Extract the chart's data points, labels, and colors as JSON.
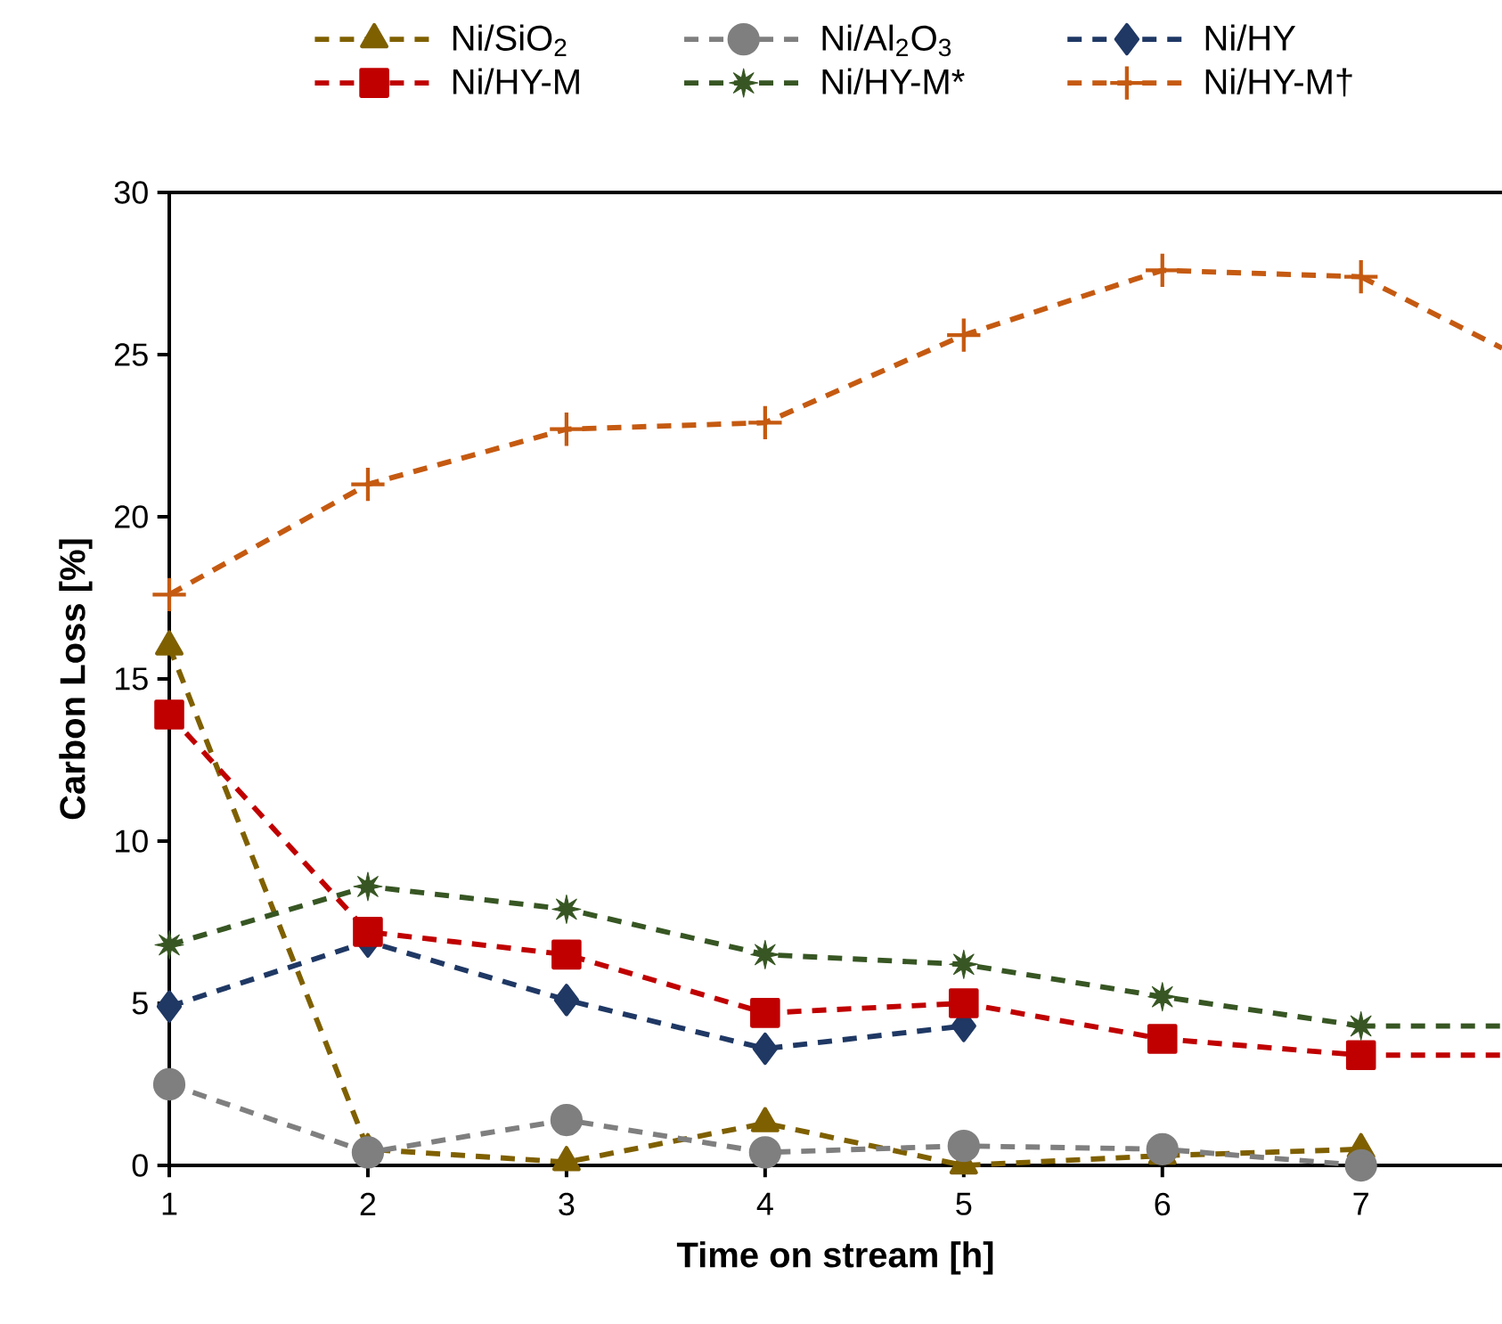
{
  "chart_data": {
    "type": "line",
    "xlabel": "Time on stream [h]",
    "ylabel": "Carbon Loss [%]",
    "xlim": [
      1,
      7.71
    ],
    "ylim": [
      0,
      30
    ],
    "xticks": [
      1,
      2,
      3,
      4,
      5,
      6,
      7
    ],
    "yticks": [
      0,
      5,
      10,
      15,
      20,
      25,
      30
    ],
    "legend": "top",
    "line_style": "dashed",
    "series": [
      {
        "name": "Ni/SiO$_{2}$",
        "color": "#7f6000",
        "marker": "triangle",
        "x": [
          1,
          2,
          3,
          4,
          5,
          6,
          7
        ],
        "values": [
          16.0,
          0.5,
          0.1,
          1.3,
          0.0,
          0.3,
          0.5
        ]
      },
      {
        "name": "Ni/Al$_{2}$O$_{3}$",
        "color": "#7f7f7f",
        "marker": "circle",
        "x": [
          1,
          2,
          3,
          4,
          5,
          6,
          7
        ],
        "values": [
          2.5,
          0.4,
          1.4,
          0.4,
          0.6,
          0.5,
          0.0
        ]
      },
      {
        "name": "Ni/HY",
        "color": "#1f3864",
        "marker": "diamond",
        "x": [
          1,
          2,
          3,
          4,
          5
        ],
        "values": [
          4.9,
          6.9,
          5.1,
          3.6,
          4.3
        ]
      },
      {
        "name": "Ni/HY-M",
        "color": "#c00000",
        "marker": "square",
        "x": [
          1,
          2,
          3,
          4,
          5,
          6,
          7
        ],
        "values": [
          13.9,
          7.2,
          6.5,
          4.7,
          5.0,
          3.9,
          3.4
        ]
      },
      {
        "name": "Ni/HY-M*",
        "color": "#375623",
        "marker": "star",
        "x": [
          1,
          2,
          3,
          4,
          5,
          6,
          7
        ],
        "values": [
          6.8,
          8.6,
          7.9,
          6.5,
          6.2,
          5.2,
          4.3
        ]
      },
      {
        "name": "Ni/HY-M†",
        "color": "#c55a11",
        "marker": "cross",
        "x": [
          1,
          2,
          3,
          4,
          5,
          6,
          7
        ],
        "values": [
          17.6,
          21.0,
          22.7,
          22.9,
          25.6,
          27.6,
          27.4
        ]
      },
      {
        "color": "#c00000",
        "marker": "none",
        "x": [
          7,
          7.71
        ],
        "values": [
          3.4,
          3.4
        ]
      },
      {
        "color": "#375623",
        "marker": "none",
        "x": [
          7,
          7.71
        ],
        "values": [
          4.3,
          4.3
        ]
      },
      {
        "color": "#c55a11",
        "marker": "none",
        "x": [
          7,
          7.71
        ],
        "values": [
          27.4,
          25.2
        ]
      }
    ]
  }
}
